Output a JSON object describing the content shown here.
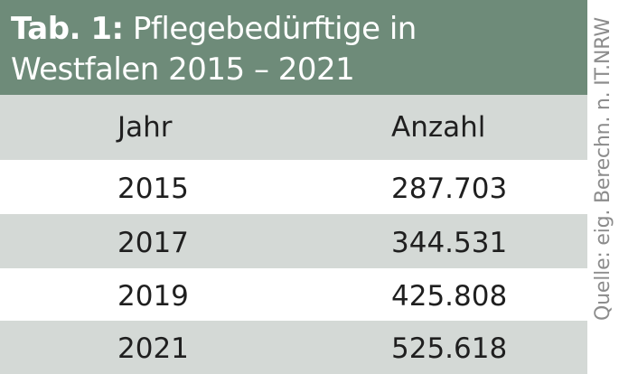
{
  "title": {
    "prefix": "Tab. 1:",
    "line1_rest": "Pflegebedürftige in",
    "line2": "Westfalen 2015 – 2021"
  },
  "table": {
    "columns": [
      "Jahr",
      "Anzahl"
    ],
    "rows": [
      {
        "year": "2015",
        "count": "287.703"
      },
      {
        "year": "2017",
        "count": "344.531"
      },
      {
        "year": "2019",
        "count": "425.808"
      },
      {
        "year": "2021",
        "count": "525.618"
      }
    ]
  },
  "source": "Quelle: eig. Berechn. n. IT.NRW",
  "colors": {
    "title_background": "#6e8b79",
    "stripe": "#d4d9d6",
    "source_text": "#8c8c8c"
  }
}
